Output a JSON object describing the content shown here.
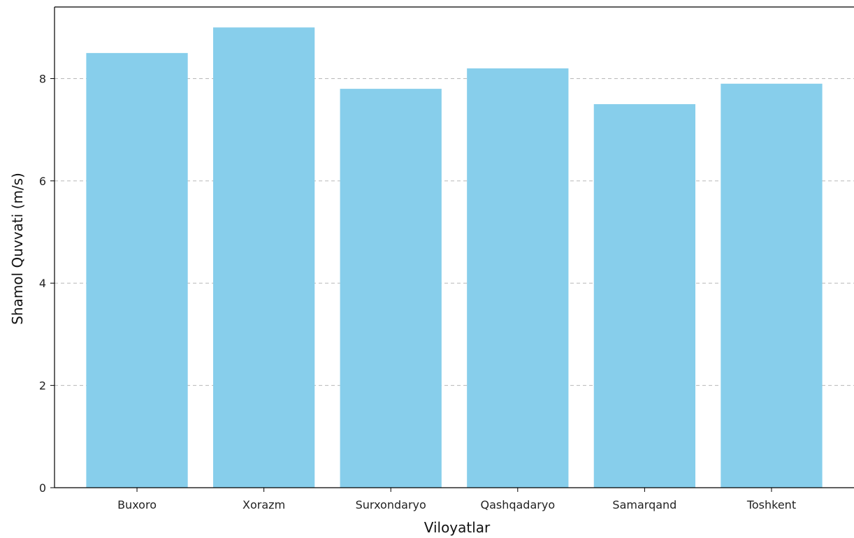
{
  "chart_data": {
    "type": "bar",
    "title": "",
    "xlabel": "Viloyatlar",
    "ylabel": "Shamol Quvvati (m/s)",
    "categories": [
      "Buxoro",
      "Xorazm",
      "Surxondaryo",
      "Qashqadaryo",
      "Samarqand",
      "Toshkent"
    ],
    "values": [
      8.5,
      9.0,
      7.8,
      8.2,
      7.5,
      7.9
    ],
    "ylim": [
      0,
      9.4
    ],
    "yticks": [
      0,
      2,
      4,
      6,
      8
    ],
    "grid": "horizontal-dashed",
    "colors": {
      "bar": "#87ceeb",
      "grid": "#b8b8b8",
      "axis": "#000000"
    }
  }
}
